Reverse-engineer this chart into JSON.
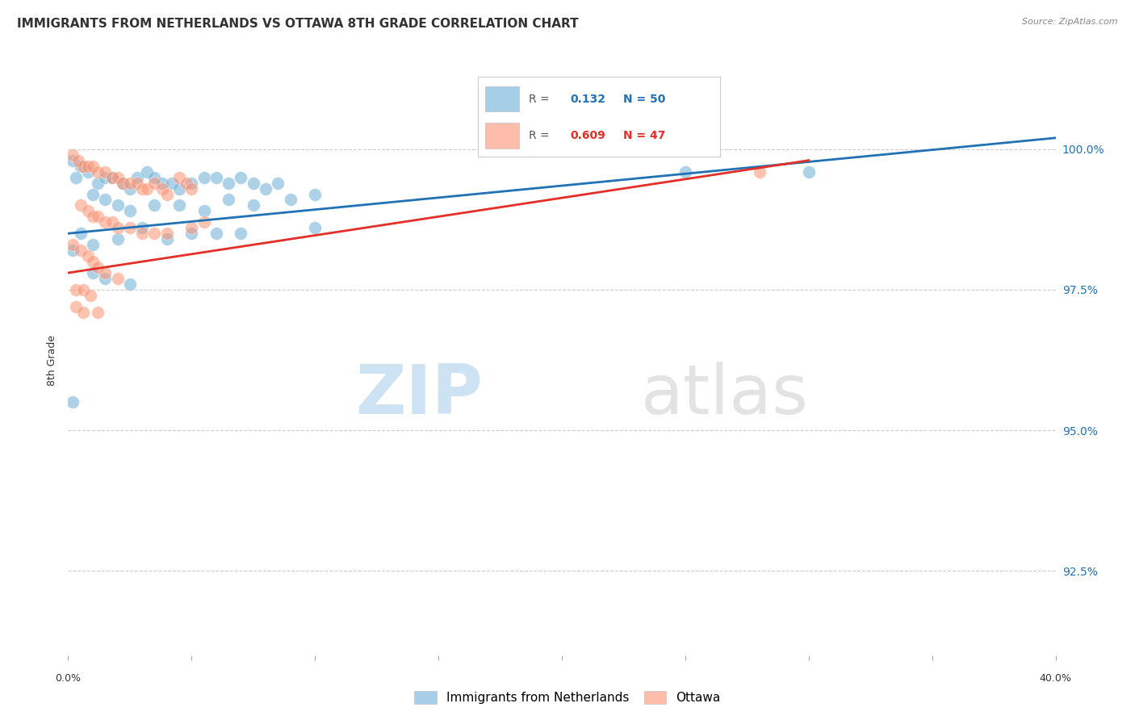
{
  "title": "IMMIGRANTS FROM NETHERLANDS VS OTTAWA 8TH GRADE CORRELATION CHART",
  "source": "Source: ZipAtlas.com",
  "ylabel": "8th Grade",
  "yticks": [
    92.5,
    95.0,
    97.5,
    100.0
  ],
  "ytick_labels": [
    "92.5%",
    "95.0%",
    "97.5%",
    "100.0%"
  ],
  "xlim": [
    0.0,
    0.4
  ],
  "ylim": [
    91.0,
    101.5
  ],
  "legend_blue": {
    "R": 0.132,
    "N": 50
  },
  "legend_pink": {
    "R": 0.609,
    "N": 47
  },
  "blue_color": "#6baed6",
  "pink_color": "#fc9272",
  "blue_line_color": "#2171b5",
  "pink_line_color": "#e32f27",
  "blue_scatter": [
    [
      0.002,
      99.8
    ],
    [
      0.005,
      99.7
    ],
    [
      0.008,
      99.6
    ],
    [
      0.003,
      99.5
    ],
    [
      0.012,
      99.4
    ],
    [
      0.015,
      99.5
    ],
    [
      0.018,
      99.5
    ],
    [
      0.022,
      99.4
    ],
    [
      0.025,
      99.3
    ],
    [
      0.028,
      99.5
    ],
    [
      0.032,
      99.6
    ],
    [
      0.035,
      99.5
    ],
    [
      0.038,
      99.4
    ],
    [
      0.042,
      99.4
    ],
    [
      0.045,
      99.3
    ],
    [
      0.05,
      99.4
    ],
    [
      0.055,
      99.5
    ],
    [
      0.06,
      99.5
    ],
    [
      0.065,
      99.4
    ],
    [
      0.07,
      99.5
    ],
    [
      0.075,
      99.4
    ],
    [
      0.08,
      99.3
    ],
    [
      0.085,
      99.4
    ],
    [
      0.01,
      99.2
    ],
    [
      0.015,
      99.1
    ],
    [
      0.02,
      99.0
    ],
    [
      0.025,
      98.9
    ],
    [
      0.035,
      99.0
    ],
    [
      0.045,
      99.0
    ],
    [
      0.055,
      98.9
    ],
    [
      0.065,
      99.1
    ],
    [
      0.075,
      99.0
    ],
    [
      0.09,
      99.1
    ],
    [
      0.1,
      99.2
    ],
    [
      0.005,
      98.5
    ],
    [
      0.01,
      98.3
    ],
    [
      0.02,
      98.4
    ],
    [
      0.03,
      98.6
    ],
    [
      0.04,
      98.4
    ],
    [
      0.05,
      98.5
    ],
    [
      0.06,
      98.5
    ],
    [
      0.07,
      98.5
    ],
    [
      0.1,
      98.6
    ],
    [
      0.002,
      98.2
    ],
    [
      0.01,
      97.8
    ],
    [
      0.015,
      97.7
    ],
    [
      0.025,
      97.6
    ],
    [
      0.3,
      99.6
    ],
    [
      0.25,
      99.6
    ],
    [
      0.002,
      95.5
    ]
  ],
  "pink_scatter": [
    [
      0.002,
      99.9
    ],
    [
      0.004,
      99.8
    ],
    [
      0.006,
      99.7
    ],
    [
      0.008,
      99.7
    ],
    [
      0.01,
      99.7
    ],
    [
      0.012,
      99.6
    ],
    [
      0.015,
      99.6
    ],
    [
      0.018,
      99.5
    ],
    [
      0.02,
      99.5
    ],
    [
      0.022,
      99.4
    ],
    [
      0.025,
      99.4
    ],
    [
      0.028,
      99.4
    ],
    [
      0.03,
      99.3
    ],
    [
      0.032,
      99.3
    ],
    [
      0.035,
      99.4
    ],
    [
      0.038,
      99.3
    ],
    [
      0.04,
      99.2
    ],
    [
      0.045,
      99.5
    ],
    [
      0.048,
      99.4
    ],
    [
      0.05,
      99.3
    ],
    [
      0.005,
      99.0
    ],
    [
      0.008,
      98.9
    ],
    [
      0.01,
      98.8
    ],
    [
      0.012,
      98.8
    ],
    [
      0.015,
      98.7
    ],
    [
      0.018,
      98.7
    ],
    [
      0.02,
      98.6
    ],
    [
      0.025,
      98.6
    ],
    [
      0.03,
      98.5
    ],
    [
      0.035,
      98.5
    ],
    [
      0.04,
      98.5
    ],
    [
      0.05,
      98.6
    ],
    [
      0.055,
      98.7
    ],
    [
      0.002,
      98.3
    ],
    [
      0.005,
      98.2
    ],
    [
      0.008,
      98.1
    ],
    [
      0.01,
      98.0
    ],
    [
      0.012,
      97.9
    ],
    [
      0.015,
      97.8
    ],
    [
      0.02,
      97.7
    ],
    [
      0.003,
      97.5
    ],
    [
      0.006,
      97.5
    ],
    [
      0.009,
      97.4
    ],
    [
      0.003,
      97.2
    ],
    [
      0.006,
      97.1
    ],
    [
      0.012,
      97.1
    ],
    [
      0.28,
      99.6
    ]
  ],
  "blue_line_x": [
    0.0,
    0.4
  ],
  "blue_line_y": [
    98.5,
    100.2
  ],
  "pink_line_x": [
    0.0,
    0.3
  ],
  "pink_line_y": [
    97.8,
    99.8
  ],
  "watermark_zip": "ZIP",
  "watermark_atlas": "atlas",
  "title_fontsize": 11,
  "axis_fontsize": 9,
  "ylabel_fontsize": 9
}
